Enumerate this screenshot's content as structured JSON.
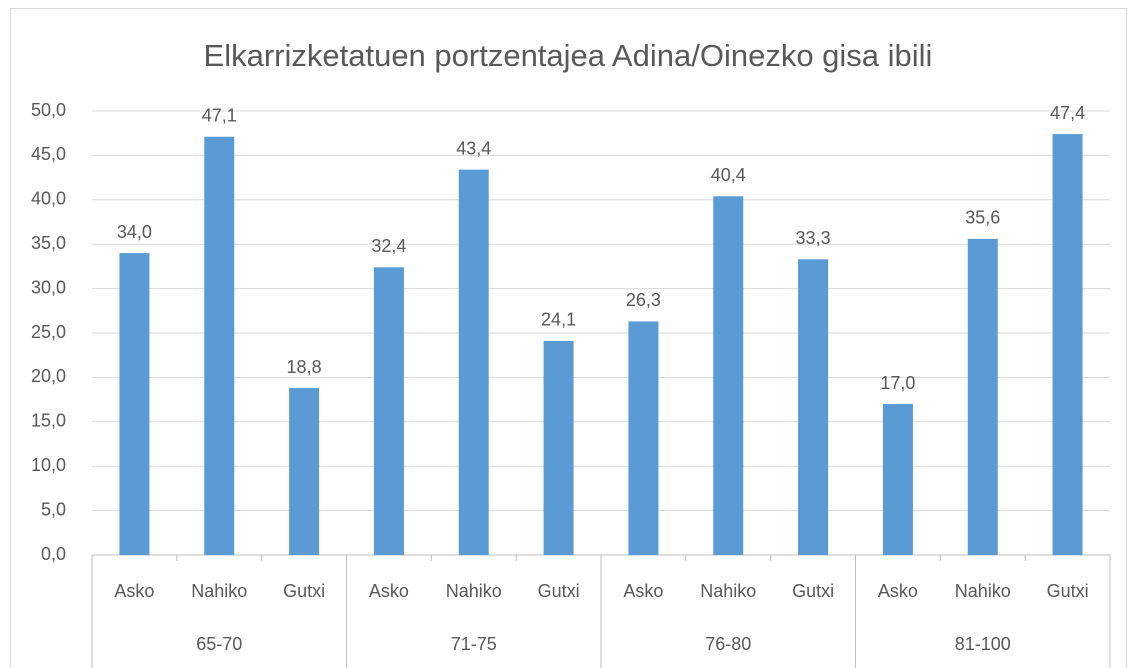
{
  "chart_data": {
    "type": "bar",
    "title": "Elkarrizketatuen portzentajea Adina/Oinezko gisa ibili",
    "categories": [
      "Asko",
      "Nahiko",
      "Gutxi",
      "Asko",
      "Nahiko",
      "Gutxi",
      "Asko",
      "Nahiko",
      "Gutxi",
      "Asko",
      "Nahiko",
      "Gutxi"
    ],
    "groups": [
      "65-70",
      "71-75",
      "76-80",
      "81-100"
    ],
    "values": [
      34.0,
      47.1,
      18.8,
      32.4,
      43.4,
      24.1,
      26.3,
      40.4,
      33.3,
      17.0,
      35.6,
      47.4
    ],
    "value_labels": [
      "34,0",
      "47,1",
      "18,8",
      "32,4",
      "43,4",
      "24,1",
      "26,3",
      "40,4",
      "33,3",
      "17,0",
      "35,6",
      "47,4"
    ],
    "color": "#5b9bd5",
    "ylim": [
      0,
      50
    ],
    "yticks": [
      {
        "value": 0,
        "label": "0,0"
      },
      {
        "value": 5,
        "label": "5,0"
      },
      {
        "value": 10,
        "label": "10,0"
      },
      {
        "value": 15,
        "label": "15,0"
      },
      {
        "value": 20,
        "label": "20,0"
      },
      {
        "value": 25,
        "label": "25,0"
      },
      {
        "value": 30,
        "label": "30,0"
      },
      {
        "value": 35,
        "label": "35,0"
      },
      {
        "value": 40,
        "label": "40,0"
      },
      {
        "value": 45,
        "label": "45,0"
      },
      {
        "value": 50,
        "label": "50,0"
      }
    ],
    "grid": true
  }
}
